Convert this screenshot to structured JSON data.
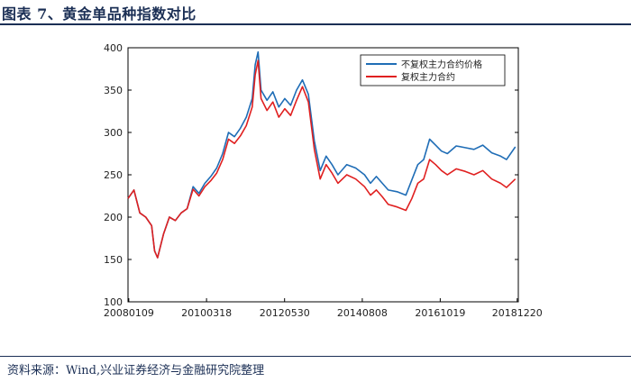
{
  "header": {
    "title": "图表 7、黄金单品种指数对比"
  },
  "footer": {
    "source": "资料来源：Wind,兴业证券经济与金融研究院整理"
  },
  "colors": {
    "series_1": "#1f6db6",
    "series_2": "#e02020",
    "title": "#1b2f55"
  },
  "chart_data": {
    "type": "line",
    "title": "",
    "xlabel": "",
    "ylabel": "",
    "ylim": [
      100,
      400
    ],
    "yticks": [
      "100",
      "150",
      "200",
      "250",
      "300",
      "350",
      "400"
    ],
    "xtick_labels": [
      "20080109",
      "20100318",
      "20120530",
      "20140808",
      "20161019",
      "20181220"
    ],
    "grid": false,
    "legend_position": "top-right",
    "x": [
      "2008-01",
      "2008-03",
      "2008-05",
      "2008-07",
      "2008-09",
      "2008-10",
      "2008-11",
      "2009-01",
      "2009-03",
      "2009-05",
      "2009-07",
      "2009-09",
      "2009-11",
      "2010-01",
      "2010-03",
      "2010-05",
      "2010-07",
      "2010-09",
      "2010-11",
      "2011-01",
      "2011-03",
      "2011-05",
      "2011-07",
      "2011-08",
      "2011-09",
      "2011-10",
      "2011-12",
      "2012-02",
      "2012-04",
      "2012-06",
      "2012-08",
      "2012-10",
      "2012-12",
      "2013-02",
      "2013-04",
      "2013-06",
      "2013-08",
      "2013-10",
      "2013-12",
      "2014-03",
      "2014-06",
      "2014-09",
      "2014-11",
      "2015-01",
      "2015-03",
      "2015-05",
      "2015-08",
      "2015-11",
      "2016-01",
      "2016-03",
      "2016-05",
      "2016-07",
      "2016-09",
      "2016-11",
      "2017-01",
      "2017-04",
      "2017-07",
      "2017-10",
      "2018-01",
      "2018-04",
      "2018-07",
      "2018-09",
      "2018-12"
    ],
    "series": [
      {
        "name": "不复权主力合约价格",
        "values": [
          222,
          232,
          205,
          200,
          190,
          160,
          152,
          180,
          200,
          196,
          205,
          210,
          236,
          228,
          240,
          248,
          258,
          275,
          300,
          295,
          305,
          318,
          340,
          380,
          395,
          350,
          338,
          348,
          330,
          340,
          332,
          350,
          362,
          345,
          290,
          255,
          272,
          262,
          250,
          262,
          258,
          250,
          240,
          248,
          240,
          232,
          230,
          226,
          244,
          262,
          268,
          292,
          285,
          278,
          275,
          284,
          282,
          280,
          285,
          276,
          272,
          268,
          283
        ]
      },
      {
        "name": "复权主力合约",
        "values": [
          222,
          232,
          205,
          200,
          190,
          160,
          152,
          180,
          200,
          196,
          205,
          210,
          233,
          225,
          236,
          243,
          252,
          268,
          292,
          287,
          296,
          308,
          330,
          368,
          385,
          340,
          326,
          336,
          318,
          328,
          320,
          338,
          354,
          336,
          280,
          245,
          262,
          252,
          240,
          250,
          245,
          236,
          226,
          232,
          224,
          215,
          212,
          208,
          222,
          240,
          245,
          268,
          262,
          255,
          250,
          257,
          254,
          250,
          255,
          245,
          240,
          235,
          245
        ]
      }
    ]
  }
}
